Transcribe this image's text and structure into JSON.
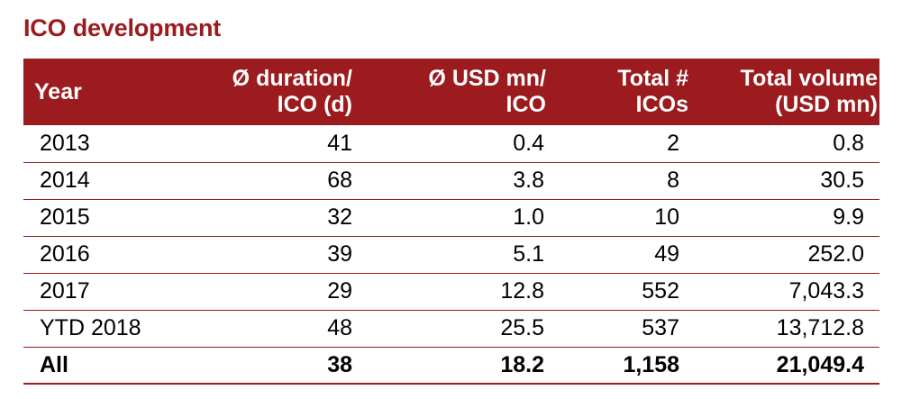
{
  "title": "ICO development",
  "colors": {
    "header_background": "#9B1B1E",
    "header_text": "#ffffff",
    "title_text": "#9B1B1E",
    "row_divider": "#9B1B1E"
  },
  "chart_data": {
    "type": "table",
    "title": "ICO development",
    "columns": [
      {
        "line1": "Year",
        "line2": ""
      },
      {
        "line1": "Ø duration/",
        "line2": "ICO (d)"
      },
      {
        "line1": "Ø USD mn/",
        "line2": "ICO"
      },
      {
        "line1": "Total #",
        "line2": "ICOs"
      },
      {
        "line1": "Total volume",
        "line2": "(USD mn)"
      }
    ],
    "rows": [
      {
        "year": "2013",
        "duration": "41",
        "usd_per_ico": "0.4",
        "total_icos": "2",
        "total_volume": "0.8"
      },
      {
        "year": "2014",
        "duration": "68",
        "usd_per_ico": "3.8",
        "total_icos": "8",
        "total_volume": "30.5"
      },
      {
        "year": "2015",
        "duration": "32",
        "usd_per_ico": "1.0",
        "total_icos": "10",
        "total_volume": "9.9"
      },
      {
        "year": "2016",
        "duration": "39",
        "usd_per_ico": "5.1",
        "total_icos": "49",
        "total_volume": "252.0"
      },
      {
        "year": "2017",
        "duration": "29",
        "usd_per_ico": "12.8",
        "total_icos": "552",
        "total_volume": "7,043.3"
      },
      {
        "year": "YTD 2018",
        "duration": "48",
        "usd_per_ico": "25.5",
        "total_icos": "537",
        "total_volume": "13,712.8"
      }
    ],
    "total": {
      "year": "All",
      "duration": "38",
      "usd_per_ico": "18.2",
      "total_icos": "1,158",
      "total_volume": "21,049.4"
    }
  }
}
